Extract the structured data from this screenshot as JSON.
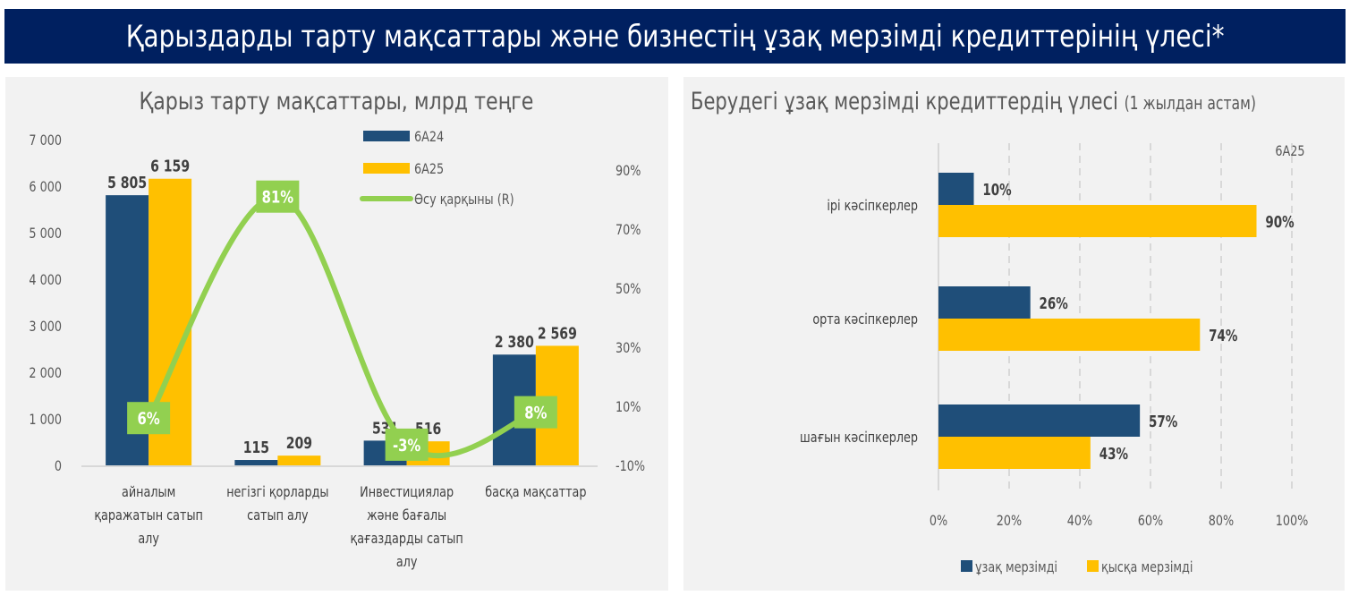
{
  "header": {
    "title": "Қарыздарды тарту мақсаттары және бизнестің ұзақ мерзімді кредиттерінің үлесі*"
  },
  "colors": {
    "navy": "#002060",
    "series_dark": "#1f4e79",
    "series_yellow": "#ffc000",
    "growth_green": "#92d050",
    "text_gray": "#595959",
    "label_dark": "#404040"
  },
  "chart_data": [
    {
      "type": "bar",
      "title": "Қарыз тарту мақсаттары, млрд теңге",
      "categories": [
        [
          "айналым",
          "қаражатын сатып",
          "алу"
        ],
        [
          "негізгі қорларды",
          "сатып алу"
        ],
        [
          "Инвестициялар",
          "және бағалы",
          "қағаздарды сатып",
          "алу"
        ],
        [
          "басқа мақсаттар"
        ]
      ],
      "series": [
        {
          "name": "6А24",
          "values": [
            5805,
            115,
            531,
            2380
          ],
          "labels": [
            "5 805",
            "115",
            "531",
            "2 380"
          ]
        },
        {
          "name": "6А25",
          "values": [
            6159,
            209,
            516,
            2569
          ],
          "labels": [
            "6 159",
            "209",
            "516",
            "2 569"
          ]
        }
      ],
      "line_series": {
        "name": "Өсу қарқыны (R)",
        "values": [
          6,
          81,
          -3,
          8
        ],
        "labels": [
          "6%",
          "81%",
          "-3%",
          "8%"
        ],
        "axis": "right"
      },
      "ylim": [
        0,
        7000
      ],
      "yticks": [
        "0",
        "1 000",
        "2 000",
        "3 000",
        "4 000",
        "5 000",
        "6 000",
        "7 000"
      ],
      "y2lim": [
        -10,
        100
      ],
      "y2ticks": [
        "-10%",
        "10%",
        "30%",
        "50%",
        "70%",
        "90%"
      ],
      "y2tick_values": [
        -10,
        10,
        30,
        50,
        70,
        90
      ],
      "legend": [
        "6А24",
        "6А25",
        "Өсу қарқыны (R)"
      ],
      "legend_position": "top-right",
      "grid": false
    },
    {
      "type": "bar",
      "orientation": "horizontal",
      "title": "Берудегі ұзақ мерзімді кредиттердің үлесі",
      "subtitle": "(1 жылдан астам)",
      "period_label": "6А25",
      "categories": [
        "ірі кәсіпкерлер",
        "орта кәсіпкерлер",
        "шағын кәсіпкерлер"
      ],
      "series": [
        {
          "name": "ұзақ мерзімді",
          "values": [
            10,
            26,
            57
          ],
          "labels": [
            "10%",
            "26%",
            "57%"
          ]
        },
        {
          "name": "қысқа мерзімді",
          "values": [
            90,
            74,
            43
          ],
          "labels": [
            "90%",
            "74%",
            "43%"
          ]
        }
      ],
      "xlim": [
        0,
        100
      ],
      "xticks": [
        "0%",
        "20%",
        "40%",
        "60%",
        "80%",
        "100%"
      ],
      "xtick_values": [
        0,
        20,
        40,
        60,
        80,
        100
      ],
      "legend": [
        "ұзақ мерзімді",
        "қысқа мерзімді"
      ],
      "legend_position": "bottom",
      "grid": true
    }
  ]
}
